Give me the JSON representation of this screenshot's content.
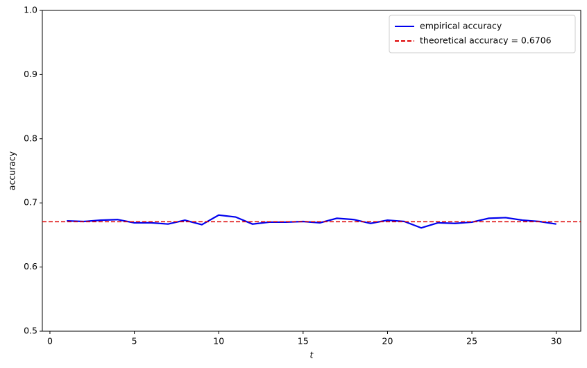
{
  "chart_data": {
    "type": "line",
    "xlabel": "t",
    "ylabel": "accuracy",
    "x": [
      1,
      2,
      3,
      4,
      5,
      6,
      7,
      8,
      9,
      10,
      11,
      12,
      13,
      14,
      15,
      16,
      17,
      18,
      19,
      20,
      21,
      22,
      23,
      24,
      25,
      26,
      27,
      28,
      29,
      30
    ],
    "series": [
      {
        "name": "empirical accuracy",
        "color": "#0000ee",
        "values": [
          0.672,
          0.671,
          0.673,
          0.674,
          0.669,
          0.669,
          0.667,
          0.673,
          0.666,
          0.681,
          0.678,
          0.667,
          0.67,
          0.67,
          0.671,
          0.669,
          0.676,
          0.674,
          0.668,
          0.673,
          0.671,
          0.661,
          0.669,
          0.668,
          0.67,
          0.676,
          0.677,
          0.673,
          0.671,
          0.667
        ]
      }
    ],
    "hline": {
      "name": "theoretical accuracy = 0.6706",
      "value": 0.6706,
      "color": "#dd0000",
      "style": "dashed"
    },
    "xlim": [
      -0.45,
      31.45
    ],
    "xticks": [
      0,
      5,
      10,
      15,
      20,
      25,
      30
    ],
    "ylim": [
      0.5,
      1
    ],
    "yticks": [
      0.5,
      0.6,
      0.7,
      0.8,
      0.9,
      {
        "value": 1,
        "label": "1.0"
      }
    ],
    "legend": "upper right"
  }
}
